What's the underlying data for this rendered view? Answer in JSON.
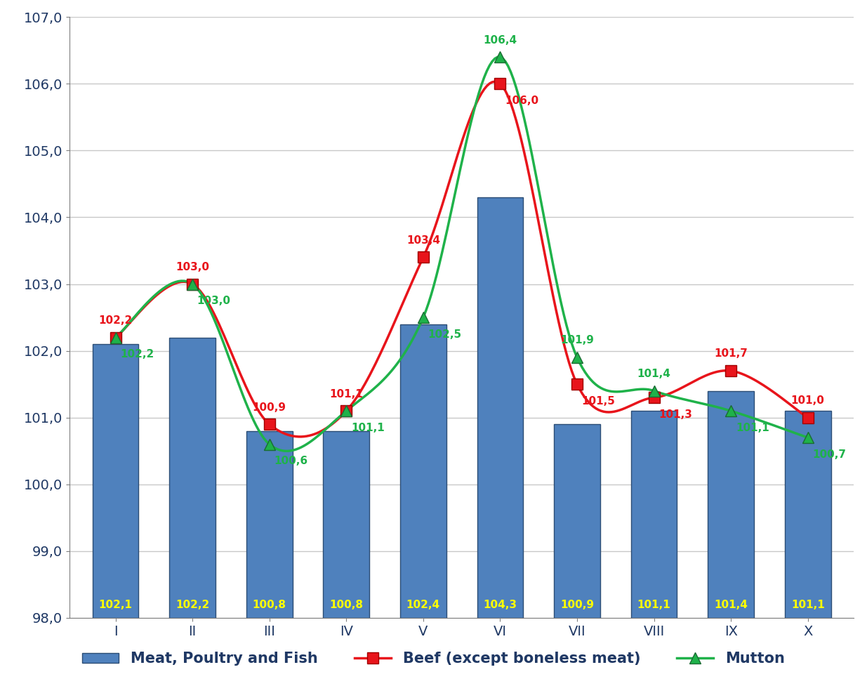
{
  "chart_data": {
    "type": "bar",
    "categories": [
      "I",
      "II",
      "III",
      "IV",
      "V",
      "VI",
      "VII",
      "VIII",
      "IX",
      "X"
    ],
    "ylim": [
      98.0,
      107.0
    ],
    "yticks": [
      {
        "value": 98.0,
        "label": "98,0"
      },
      {
        "value": 99.0,
        "label": "99,0"
      },
      {
        "value": 100.0,
        "label": "100,0"
      },
      {
        "value": 101.0,
        "label": "101,0"
      },
      {
        "value": 102.0,
        "label": "102,0"
      },
      {
        "value": 103.0,
        "label": "103,0"
      },
      {
        "value": 104.0,
        "label": "104,0"
      },
      {
        "value": 105.0,
        "label": "105,0"
      },
      {
        "value": 106.0,
        "label": "106,0"
      },
      {
        "value": 107.0,
        "label": "107,0"
      }
    ],
    "grid": true,
    "legend": "lower center",
    "data_labels": true,
    "series": [
      {
        "name": "Meat, Poultry and Fish",
        "type": "bar",
        "color": "#4f81bd",
        "values": [
          102.1,
          102.2,
          100.8,
          100.8,
          102.4,
          104.3,
          100.9,
          101.1,
          101.4,
          101.1
        ],
        "value_labels": [
          "102,1",
          "102,2",
          "100,8",
          "100,8",
          "102,4",
          "104,3",
          "100,9",
          "101,1",
          "101,4",
          "101,1"
        ]
      },
      {
        "name": "Beef (except boneless meat)",
        "type": "line",
        "color": "#e8141b",
        "marker": "square",
        "line_style": "smooth",
        "values": [
          102.2,
          103.0,
          100.9,
          101.1,
          103.4,
          106.0,
          101.5,
          101.3,
          101.7,
          101.0
        ],
        "value_labels": [
          "102,2",
          "103,0",
          "100,9",
          "101,1",
          "103,4",
          "106,0",
          "101,5",
          "101,3",
          "101,7",
          "101,0"
        ]
      },
      {
        "name": "Mutton",
        "type": "line",
        "color": "#1fb24a",
        "marker": "triangle",
        "line_style": "smooth",
        "values": [
          102.2,
          103.0,
          100.6,
          101.1,
          102.5,
          106.4,
          101.9,
          101.4,
          101.1,
          100.7
        ],
        "value_labels": [
          "102,2",
          "103,0",
          "100,6",
          "101,1",
          "102,5",
          "106,4",
          "101,9",
          "101,4",
          "101,1",
          "100,7"
        ]
      }
    ]
  }
}
